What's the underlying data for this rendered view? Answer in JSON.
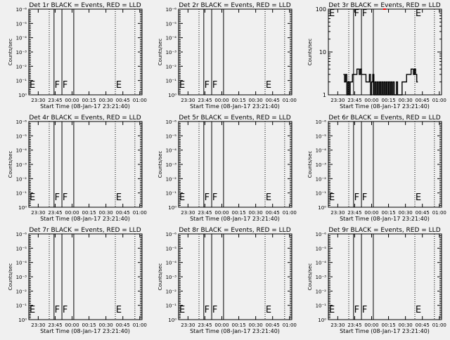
{
  "chart_data": {
    "type": "line",
    "common": {
      "ylabel": "Counts/sec",
      "xlabel": "Start Time (08-Jan-17 23:21:40)",
      "xlim": [
        "23:21:40",
        "01:02:00"
      ],
      "xticks": [
        "23:30",
        "23:45",
        "00:00",
        "00:15",
        "00:30",
        "00:45",
        "01:00"
      ],
      "empty_yticks": [
        "10⁰",
        "10⁻¹",
        "10⁻²",
        "10⁻³",
        "10⁻⁴",
        "10⁻⁵",
        "10⁻⁶"
      ],
      "vlines": [
        {
          "time": "23:39:45",
          "style": "dotted"
        },
        {
          "time": "23:44:00",
          "style": "solid"
        },
        {
          "time": "23:51:00",
          "style": "solid"
        },
        {
          "time": "00:01:30",
          "style": "solid"
        },
        {
          "time": "00:38:20",
          "style": "dotted"
        },
        {
          "time": "00:55:40",
          "style": "dotted"
        }
      ],
      "markers": [
        {
          "time": "23:22:00",
          "label": "E"
        },
        {
          "time": "23:44:30",
          "label": "F"
        },
        {
          "time": "23:51:30",
          "label": "F"
        },
        {
          "time": "00:38:50",
          "label": "E"
        }
      ],
      "colors": {
        "events": "#000000",
        "lld": "#ff0000"
      }
    },
    "panels": [
      {
        "title": "Det 1r BLACK = Events, RED = LLD",
        "scale": "log",
        "series": []
      },
      {
        "title": "Det 2r BLACK = Events, RED = LLD",
        "scale": "log",
        "series": []
      },
      {
        "title": "Det 3r BLACK = Events, RED = LLD",
        "scale": "log",
        "ylim": [
          1,
          100
        ],
        "yticks": [
          "1",
          "10",
          "100"
        ],
        "lld_marker": {
          "time": "00:11:30",
          "value": 100
        },
        "series": [
          [
            "23:35:00",
            3
          ],
          [
            "23:36:00",
            2
          ],
          [
            "23:37:00",
            3
          ],
          [
            "23:38:00",
            1
          ],
          [
            "23:39:00",
            2
          ],
          [
            "23:40:00",
            1
          ],
          [
            "23:41:00",
            2
          ],
          [
            "23:42:00",
            2
          ],
          [
            "23:43:00",
            3
          ],
          [
            "23:45:00",
            3
          ],
          [
            "23:47:00",
            4
          ],
          [
            "23:48:00",
            4
          ],
          [
            "23:49:00",
            3
          ],
          [
            "23:50:00",
            4
          ],
          [
            "23:51:00",
            3
          ],
          [
            "23:53:00",
            3
          ],
          [
            "23:55:00",
            2
          ],
          [
            "23:57:00",
            2
          ],
          [
            "23:58:00",
            3
          ],
          [
            "23:59:00",
            1
          ],
          [
            "00:00:00",
            2
          ],
          [
            "00:01:00",
            3
          ],
          [
            "00:02:00",
            1
          ],
          [
            "00:03:00",
            2
          ],
          [
            "00:04:00",
            1
          ],
          [
            "00:05:00",
            2
          ],
          [
            "00:06:00",
            1
          ],
          [
            "00:07:00",
            2
          ],
          [
            "00:08:00",
            1
          ],
          [
            "00:09:00",
            2
          ],
          [
            "00:10:00",
            1
          ],
          [
            "00:11:00",
            2
          ],
          [
            "00:12:00",
            1
          ],
          [
            "00:13:00",
            2
          ],
          [
            "00:14:00",
            1
          ],
          [
            "00:15:00",
            2
          ],
          [
            "00:16:00",
            1
          ],
          [
            "00:17:00",
            2
          ],
          [
            "00:18:00",
            1
          ],
          [
            "00:19:00",
            2
          ],
          [
            "00:20:00",
            1
          ],
          [
            "00:22:00",
            2
          ],
          [
            "00:23:00",
            1
          ],
          [
            "00:26:00",
            1
          ],
          [
            "00:27:00",
            2
          ],
          [
            "00:29:00",
            2
          ],
          [
            "00:31:00",
            3
          ],
          [
            "00:33:00",
            3
          ],
          [
            "00:35:00",
            4
          ],
          [
            "00:37:00",
            3
          ],
          [
            "00:38:00",
            4
          ],
          [
            "00:39:00",
            3
          ],
          [
            "00:40:00",
            2
          ]
        ]
      },
      {
        "title": "Det 4r BLACK = Events, RED = LLD",
        "scale": "log",
        "series": []
      },
      {
        "title": "Det 5r BLACK = Events, RED = LLD",
        "scale": "log",
        "series": []
      },
      {
        "title": "Det 6r BLACK = Events, RED = LLD",
        "scale": "log",
        "series": []
      },
      {
        "title": "Det 7r BLACK = Events, RED = LLD",
        "scale": "log",
        "series": []
      },
      {
        "title": "Det 8r BLACK = Events, RED = LLD",
        "scale": "log",
        "series": []
      },
      {
        "title": "Det 9r BLACK = Events, RED = LLD",
        "scale": "log",
        "series": []
      }
    ]
  }
}
